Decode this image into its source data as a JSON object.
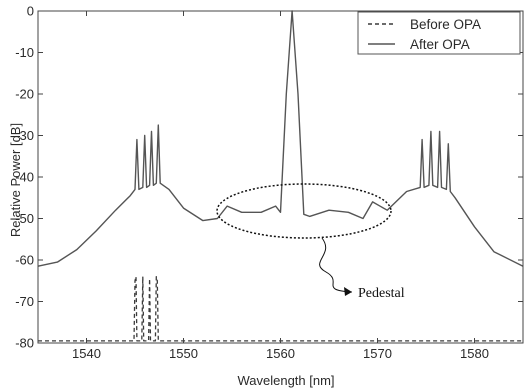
{
  "chart_data": {
    "type": "line",
    "xlabel": "Wavelength [nm]",
    "ylabel": "Relative Power [dB]",
    "xlim": [
      1535,
      1585
    ],
    "ylim": [
      -80,
      0
    ],
    "xticks": [
      1540,
      1550,
      1560,
      1570,
      1580
    ],
    "yticks": [
      0,
      -10,
      -20,
      -30,
      -40,
      -50,
      -60,
      -70,
      -80
    ],
    "grid": false,
    "legend_position": "top-right",
    "series": [
      {
        "name": "Before OPA",
        "style": "dashed",
        "color": "#3a3a3a",
        "x": [
          1535,
          1540,
          1544.9,
          1545,
          1545.1,
          1545.2,
          1545.7,
          1545.8,
          1545.9,
          1546.4,
          1546.5,
          1546.6,
          1547.1,
          1547.2,
          1547.3,
          1547.4,
          1548,
          1552,
          1556,
          1560,
          1564,
          1568,
          1572,
          1576,
          1580,
          1585
        ],
        "y": [
          -79.5,
          -79.5,
          -79.5,
          -65,
          -64,
          -79.5,
          -79.5,
          -64,
          -79.5,
          -79.5,
          -64.5,
          -79.5,
          -79.5,
          -64,
          -65,
          -79.5,
          -79.5,
          -79.5,
          -79.5,
          -79.5,
          -79.5,
          -79.5,
          -79.5,
          -79.5,
          -79.5,
          -79.5
        ]
      },
      {
        "name": "After OPA",
        "style": "solid",
        "color": "#555555",
        "x": [
          1535,
          1537,
          1539,
          1541,
          1543,
          1544.5,
          1545,
          1545.2,
          1545.4,
          1545.8,
          1546,
          1546.2,
          1546.5,
          1546.7,
          1546.9,
          1547.2,
          1547.4,
          1547.6,
          1548.5,
          1550,
          1552,
          1553.5,
          1554.5,
          1556,
          1558,
          1559.5,
          1560,
          1560.6,
          1561.2,
          1561.8,
          1562.4,
          1563,
          1565,
          1567,
          1568.5,
          1569.5,
          1571,
          1573,
          1574.4,
          1574.6,
          1574.8,
          1575.3,
          1575.5,
          1575.7,
          1576.2,
          1576.4,
          1576.6,
          1577.1,
          1577.3,
          1577.5,
          1578,
          1580,
          1582,
          1585
        ],
        "y": [
          -61.5,
          -60.5,
          -57.5,
          -53,
          -48,
          -44.5,
          -43,
          -31,
          -43,
          -42.5,
          -30,
          -42.5,
          -42,
          -29,
          -42,
          -41.5,
          -27.5,
          -41.5,
          -43,
          -47.5,
          -50.5,
          -50,
          -47,
          -48.5,
          -48.5,
          -47,
          -48.5,
          -20,
          0,
          -20,
          -49,
          -49.5,
          -48,
          -48.5,
          -50,
          -46,
          -48,
          -43.5,
          -42.5,
          -31,
          -42.5,
          -42,
          -29,
          -42,
          -42.5,
          -29,
          -42.5,
          -43,
          -32,
          -43.5,
          -45,
          -52,
          -58,
          -61.5
        ]
      }
    ],
    "annotations": [
      {
        "text": "Pedestal",
        "x": 1562.5,
        "y": -49.5
      }
    ]
  }
}
